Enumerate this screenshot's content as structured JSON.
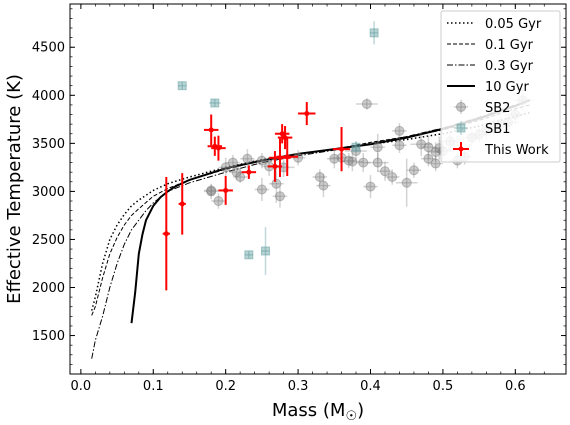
{
  "chart_data": {
    "type": "scatter",
    "xlabel": "Mass (M",
    "xlabel_sub": "☉",
    "xlabel_end": ")",
    "ylabel": "Effective Temperature (K)",
    "xlim": [
      -0.015,
      0.67
    ],
    "ylim": [
      1100,
      4950
    ],
    "xticks": [
      0.0,
      0.1,
      0.2,
      0.3,
      0.4,
      0.5,
      0.6
    ],
    "xtick_labels": [
      "0.0",
      "0.1",
      "0.2",
      "0.3",
      "0.4",
      "0.5",
      "0.6"
    ],
    "yticks": [
      1500,
      2000,
      2500,
      3000,
      3500,
      4000,
      4500
    ],
    "ytick_labels": [
      "1500",
      "2000",
      "2500",
      "3000",
      "3500",
      "4000",
      "4500"
    ],
    "legend_position": "top-right",
    "isochrones": [
      {
        "name": "0.05 Gyr",
        "style": "dotted",
        "x": [
          0.015,
          0.02,
          0.03,
          0.04,
          0.05,
          0.06,
          0.07,
          0.08,
          0.1,
          0.12,
          0.15,
          0.2,
          0.25,
          0.3,
          0.35,
          0.4,
          0.45,
          0.5,
          0.55,
          0.6,
          0.62
        ],
        "y": [
          1760,
          1900,
          2250,
          2500,
          2650,
          2760,
          2850,
          2910,
          3010,
          3080,
          3150,
          3250,
          3330,
          3390,
          3440,
          3490,
          3540,
          3600,
          3680,
          3780,
          3820
        ]
      },
      {
        "name": "0.1 Gyr",
        "style": "dashed",
        "x": [
          0.015,
          0.02,
          0.03,
          0.04,
          0.05,
          0.06,
          0.07,
          0.08,
          0.1,
          0.12,
          0.15,
          0.2,
          0.25,
          0.3,
          0.35,
          0.4,
          0.45,
          0.5,
          0.55,
          0.6,
          0.62
        ],
        "y": [
          1710,
          1800,
          2100,
          2350,
          2520,
          2650,
          2750,
          2820,
          2950,
          3030,
          3120,
          3230,
          3320,
          3390,
          3440,
          3510,
          3570,
          3640,
          3740,
          3860,
          3900
        ]
      },
      {
        "name": "0.3 Gyr",
        "style": "dashdot",
        "x": [
          0.015,
          0.02,
          0.03,
          0.04,
          0.05,
          0.06,
          0.07,
          0.08,
          0.09,
          0.1,
          0.12,
          0.15,
          0.2,
          0.25,
          0.3,
          0.35,
          0.4,
          0.45,
          0.5,
          0.55,
          0.6,
          0.62
        ],
        "y": [
          1260,
          1450,
          1700,
          2000,
          2250,
          2450,
          2600,
          2700,
          2800,
          2880,
          3000,
          3090,
          3200,
          3300,
          3370,
          3430,
          3500,
          3570,
          3660,
          3770,
          3900,
          3950
        ]
      },
      {
        "name": "10 Gyr",
        "style": "solid",
        "x": [
          0.07,
          0.075,
          0.08,
          0.085,
          0.09,
          0.1,
          0.11,
          0.12,
          0.13,
          0.15,
          0.2,
          0.25,
          0.3,
          0.35,
          0.4,
          0.45,
          0.5,
          0.55,
          0.6,
          0.62
        ],
        "y": [
          1630,
          1950,
          2350,
          2550,
          2700,
          2850,
          2940,
          3000,
          3050,
          3120,
          3240,
          3320,
          3390,
          3440,
          3490,
          3560,
          3650,
          3760,
          3890,
          3950
        ]
      }
    ],
    "sb2": {
      "name": "SB2",
      "x": [
        0.18,
        0.18,
        0.19,
        0.2,
        0.21,
        0.215,
        0.22,
        0.23,
        0.25,
        0.25,
        0.26,
        0.27,
        0.275,
        0.28,
        0.3,
        0.33,
        0.335,
        0.35,
        0.36,
        0.37,
        0.375,
        0.38,
        0.39,
        0.395,
        0.4,
        0.41,
        0.41,
        0.42,
        0.43,
        0.44,
        0.44,
        0.45,
        0.46,
        0.47,
        0.48,
        0.48,
        0.49,
        0.49,
        0.495,
        0.5,
        0.51,
        0.52,
        0.525,
        0.53,
        0.54,
        0.55,
        0.56,
        0.57,
        0.58,
        0.59,
        0.6,
        0.61
      ],
      "y": [
        3000,
        3010,
        2900,
        3250,
        3300,
        3200,
        3150,
        3340,
        3020,
        3320,
        3260,
        3080,
        2950,
        3250,
        3350,
        3150,
        3060,
        3340,
        3350,
        3320,
        3310,
        3420,
        3300,
        3910,
        3050,
        3300,
        3460,
        3210,
        3150,
        3480,
        3630,
        3090,
        3220,
        3490,
        3340,
        3460,
        3410,
        3290,
        3450,
        3420,
        3520,
        3320,
        3880,
        3360,
        3560,
        3590,
        3640,
        3660,
        3700,
        3720,
        3800,
        3950
      ],
      "xerr": [
        0.01,
        0.01,
        0.01,
        0.01,
        0.01,
        0.01,
        0.01,
        0.01,
        0.01,
        0.015,
        0.01,
        0.01,
        0.01,
        0.015,
        0.01,
        0.01,
        0.01,
        0.01,
        0.015,
        0.01,
        0.015,
        0.015,
        0.01,
        0.015,
        0.01,
        0.015,
        0.01,
        0.01,
        0.01,
        0.01,
        0.01,
        0.015,
        0.01,
        0.015,
        0.01,
        0.01,
        0.01,
        0.01,
        0.01,
        0.015,
        0.015,
        0.01,
        0.015,
        0.01,
        0.01,
        0.015,
        0.015,
        0.015,
        0.015,
        0.015,
        0.015,
        0.015
      ],
      "yerr": [
        80,
        60,
        80,
        100,
        80,
        80,
        60,
        100,
        120,
        80,
        100,
        200,
        120,
        100,
        80,
        80,
        120,
        100,
        80,
        80,
        100,
        100,
        100,
        60,
        120,
        100,
        140,
        100,
        80,
        80,
        80,
        250,
        80,
        120,
        80,
        120,
        100,
        80,
        120,
        100,
        100,
        80,
        80,
        80,
        80,
        80,
        100,
        100,
        80,
        80,
        100,
        120
      ]
    },
    "sb1": {
      "name": "SB1",
      "x": [
        0.14,
        0.185,
        0.232,
        0.255,
        0.38,
        0.405
      ],
      "y": [
        4100,
        3920,
        2340,
        2380,
        3460,
        4650
      ],
      "xerr": [
        0.006,
        0.008,
        0.006,
        0.006,
        0.006,
        0.006
      ],
      "yerr": [
        40,
        40,
        40,
        250,
        60,
        120
      ]
    },
    "this_work": {
      "name": "This Work",
      "x": [
        0.118,
        0.14,
        0.18,
        0.185,
        0.19,
        0.2,
        0.232,
        0.268,
        0.275,
        0.278,
        0.282,
        0.285,
        0.312,
        0.36
      ],
      "y": [
        2560,
        2870,
        3640,
        3470,
        3450,
        3010,
        3200,
        3260,
        3350,
        3600,
        3560,
        3360,
        3810,
        3440
      ],
      "xerr": [
        0.005,
        0.005,
        0.01,
        0.01,
        0.01,
        0.01,
        0.01,
        0.01,
        0.015,
        0.01,
        0.01,
        0.015,
        0.012,
        0.012
      ],
      "yerr": [
        590,
        320,
        160,
        100,
        130,
        150,
        70,
        160,
        200,
        100,
        120,
        200,
        120,
        230
      ]
    }
  }
}
